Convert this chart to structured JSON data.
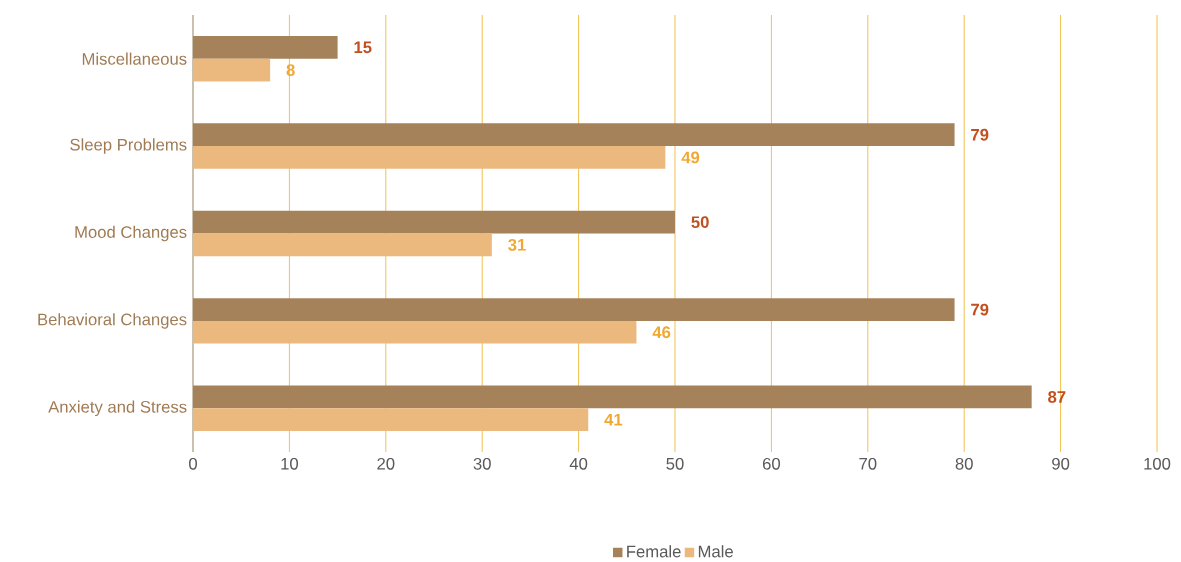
{
  "chart_data": {
    "type": "bar",
    "orientation": "horizontal",
    "categories": [
      "Miscellaneous",
      "Sleep Problems",
      "Mood Changes",
      "Behavioral Changes",
      "Anxiety and Stress"
    ],
    "series": [
      {
        "name": "Female",
        "color": "#a6825a",
        "values": [
          15,
          79,
          50,
          79,
          87
        ]
      },
      {
        "name": "Male",
        "color": "#ebb97e",
        "values": [
          8,
          49,
          31,
          46,
          41
        ]
      }
    ],
    "xlim": [
      0,
      100
    ],
    "xticks": [
      0,
      10,
      20,
      30,
      40,
      50,
      60,
      70,
      80,
      90,
      100
    ],
    "grid": "x",
    "legend": "bottom",
    "data_labels": true
  }
}
